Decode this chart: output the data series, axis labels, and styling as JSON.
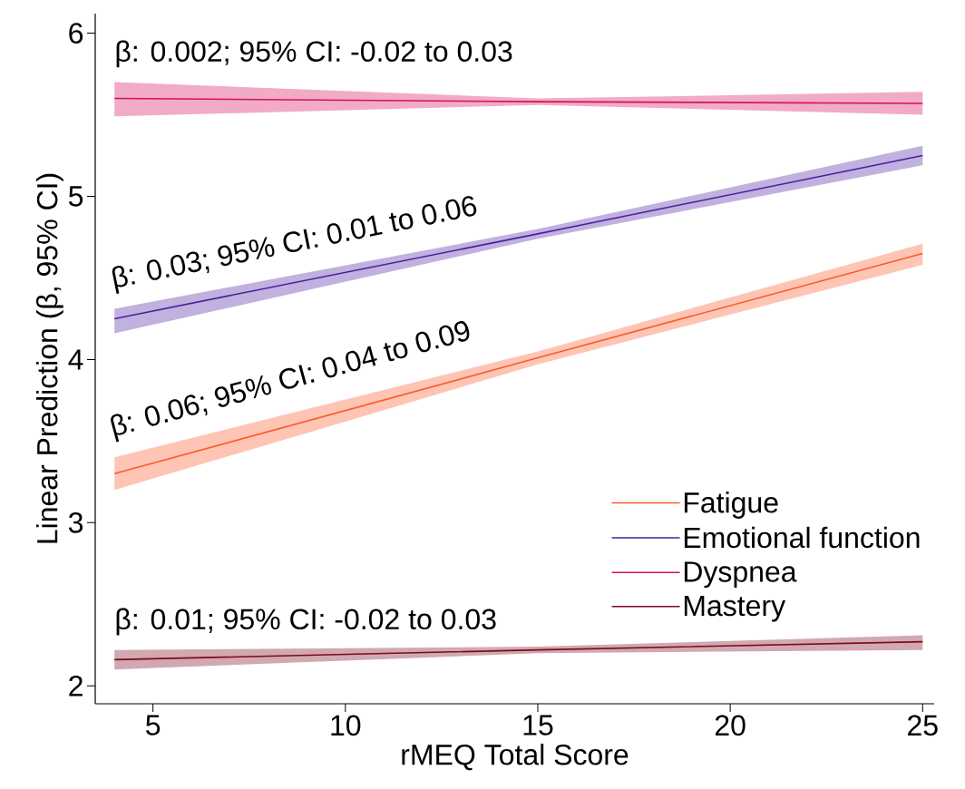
{
  "chart_data": {
    "type": "line",
    "xlabel": "rMEQ Total Score",
    "ylabel": "Linear Prediction (β, 95% CI)",
    "x": [
      4,
      15,
      25
    ],
    "series": [
      {
        "name": "Fatigue",
        "color": "#fc5a2a",
        "values": [
          3.3,
          4.01,
          4.65
        ],
        "lower": [
          3.2,
          3.97,
          4.58
        ],
        "upper": [
          3.4,
          4.05,
          4.71
        ]
      },
      {
        "name": "Emotional function",
        "color": "#4b1fa0",
        "values": [
          4.25,
          4.77,
          5.25
        ],
        "lower": [
          4.16,
          4.74,
          5.19
        ],
        "upper": [
          4.31,
          4.8,
          5.31
        ]
      },
      {
        "name": "Dyspnea",
        "color": "#d6105c",
        "values": [
          5.6,
          5.58,
          5.57
        ],
        "lower": [
          5.49,
          5.56,
          5.5
        ],
        "upper": [
          5.7,
          5.6,
          5.64
        ]
      },
      {
        "name": "Mastery",
        "color": "#7d0a1e",
        "values": [
          2.16,
          2.22,
          2.27
        ],
        "lower": [
          2.1,
          2.2,
          2.22
        ],
        "upper": [
          2.22,
          2.24,
          2.31
        ]
      }
    ],
    "annotations": [
      "β: 0.002; 95% CI: -0.02 to 0.03",
      "β: 0.03; 95% CI: 0.01 to 0.06",
      "β: 0.06; 95% CI: 0.04 to 0.09",
      "β: 0.01; 95% CI: -0.02 to 0.03"
    ],
    "xlim": [
      3.5,
      25.3
    ],
    "ylim": [
      1.89,
      6.12
    ],
    "xticks": [
      5,
      10,
      15,
      20,
      25
    ],
    "yticks": [
      2,
      3,
      4,
      5,
      6
    ],
    "legend": "bottom right"
  }
}
